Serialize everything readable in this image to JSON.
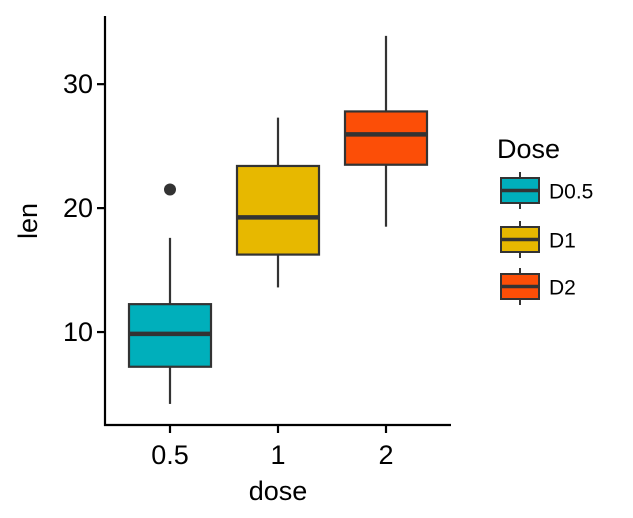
{
  "chart_data": {
    "type": "boxplot",
    "title": "",
    "xlabel": "dose",
    "ylabel": "len",
    "categories": [
      "0.5",
      "1",
      "2"
    ],
    "ylim": [
      2.5,
      35.5
    ],
    "yticks": [
      10,
      20,
      30
    ],
    "ytick_labels": [
      "10",
      "20",
      "30"
    ],
    "grid": false,
    "legend": {
      "title": "Dose",
      "position": "right",
      "labels": [
        "D0.5",
        "D1",
        "D2"
      ]
    },
    "colors": [
      "#00AFBB",
      "#E7B800",
      "#FC4E07"
    ],
    "boxes": [
      {
        "category": "0.5",
        "group": "D0.5",
        "whisker_low": 4.2,
        "q1": 7.2,
        "median": 9.85,
        "q3": 12.25,
        "whisker_high": 17.6,
        "outliers": [
          21.5
        ]
      },
      {
        "category": "1",
        "group": "D1",
        "whisker_low": 13.6,
        "q1": 16.25,
        "median": 19.25,
        "q3": 23.4,
        "whisker_high": 27.3,
        "outliers": []
      },
      {
        "category": "2",
        "group": "D2",
        "whisker_low": 18.5,
        "q1": 23.5,
        "median": 25.95,
        "q3": 27.8,
        "whisker_high": 33.9,
        "outliers": []
      }
    ]
  }
}
